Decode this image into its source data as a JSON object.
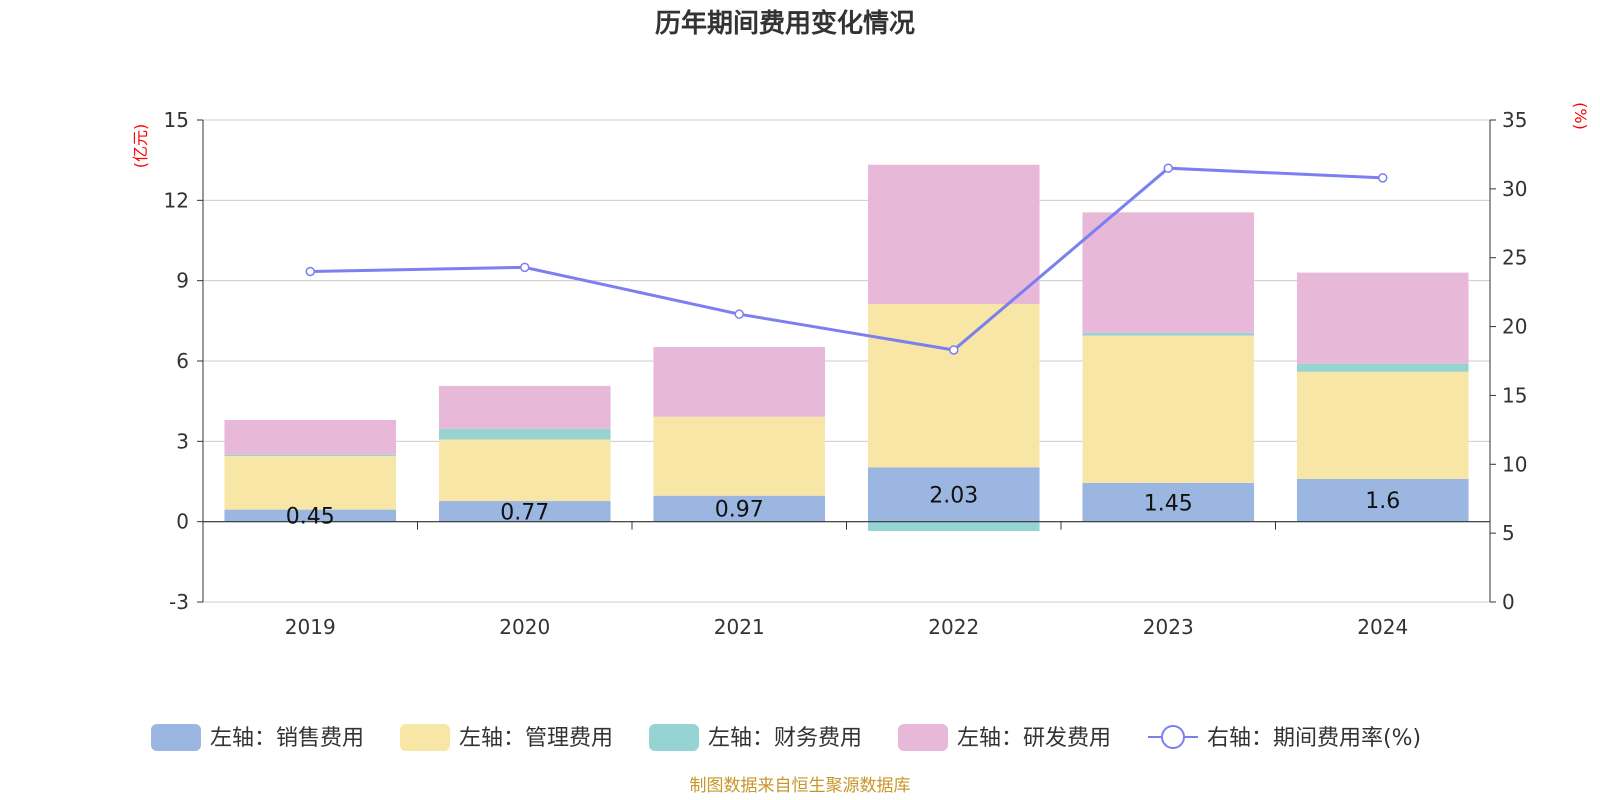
{
  "chart_data": {
    "type": "bar",
    "title": "历年期间费用变化情况",
    "categories": [
      "2019",
      "2020",
      "2021",
      "2022",
      "2023",
      "2024"
    ],
    "left_axis": {
      "name": "(亿元)",
      "ylim": [
        -3,
        15
      ],
      "ticks": [
        -3,
        0,
        3,
        6,
        9,
        12,
        15
      ]
    },
    "right_axis": {
      "name": "(%)",
      "ylim": [
        0,
        35
      ],
      "ticks": [
        0,
        5,
        10,
        15,
        20,
        25,
        30,
        35
      ]
    },
    "series": [
      {
        "name": "左轴：销售费用",
        "type": "bar",
        "stack": true,
        "color": "#9bb6e0",
        "values": [
          0.45,
          0.77,
          0.97,
          2.03,
          1.45,
          1.6
        ],
        "labels": [
          "0.45",
          "0.77",
          "0.97",
          "2.03",
          "1.45",
          "1.6"
        ]
      },
      {
        "name": "左轴：管理费用",
        "type": "bar",
        "stack": true,
        "color": "#f7e6a6",
        "values": [
          2.0,
          2.3,
          2.95,
          6.1,
          5.5,
          4.0
        ]
      },
      {
        "name": "左轴：财务费用",
        "type": "bar",
        "stack": true,
        "color": "#96d3d3",
        "values": [
          0.05,
          0.4,
          0.0,
          -0.35,
          0.1,
          0.3
        ]
      },
      {
        "name": "左轴：研发费用",
        "type": "bar",
        "stack": true,
        "color": "#e8b8d8",
        "values": [
          1.3,
          1.6,
          2.6,
          5.2,
          4.5,
          3.4
        ]
      },
      {
        "name": "右轴：期间费用率(%)",
        "type": "line",
        "axis": "right",
        "color": "#7b7ff0",
        "values": [
          24.0,
          24.3,
          20.9,
          18.3,
          31.5,
          30.8
        ]
      }
    ],
    "legend": "bottom-center",
    "grid": true
  },
  "source": "制图数据来自恒生聚源数据库"
}
